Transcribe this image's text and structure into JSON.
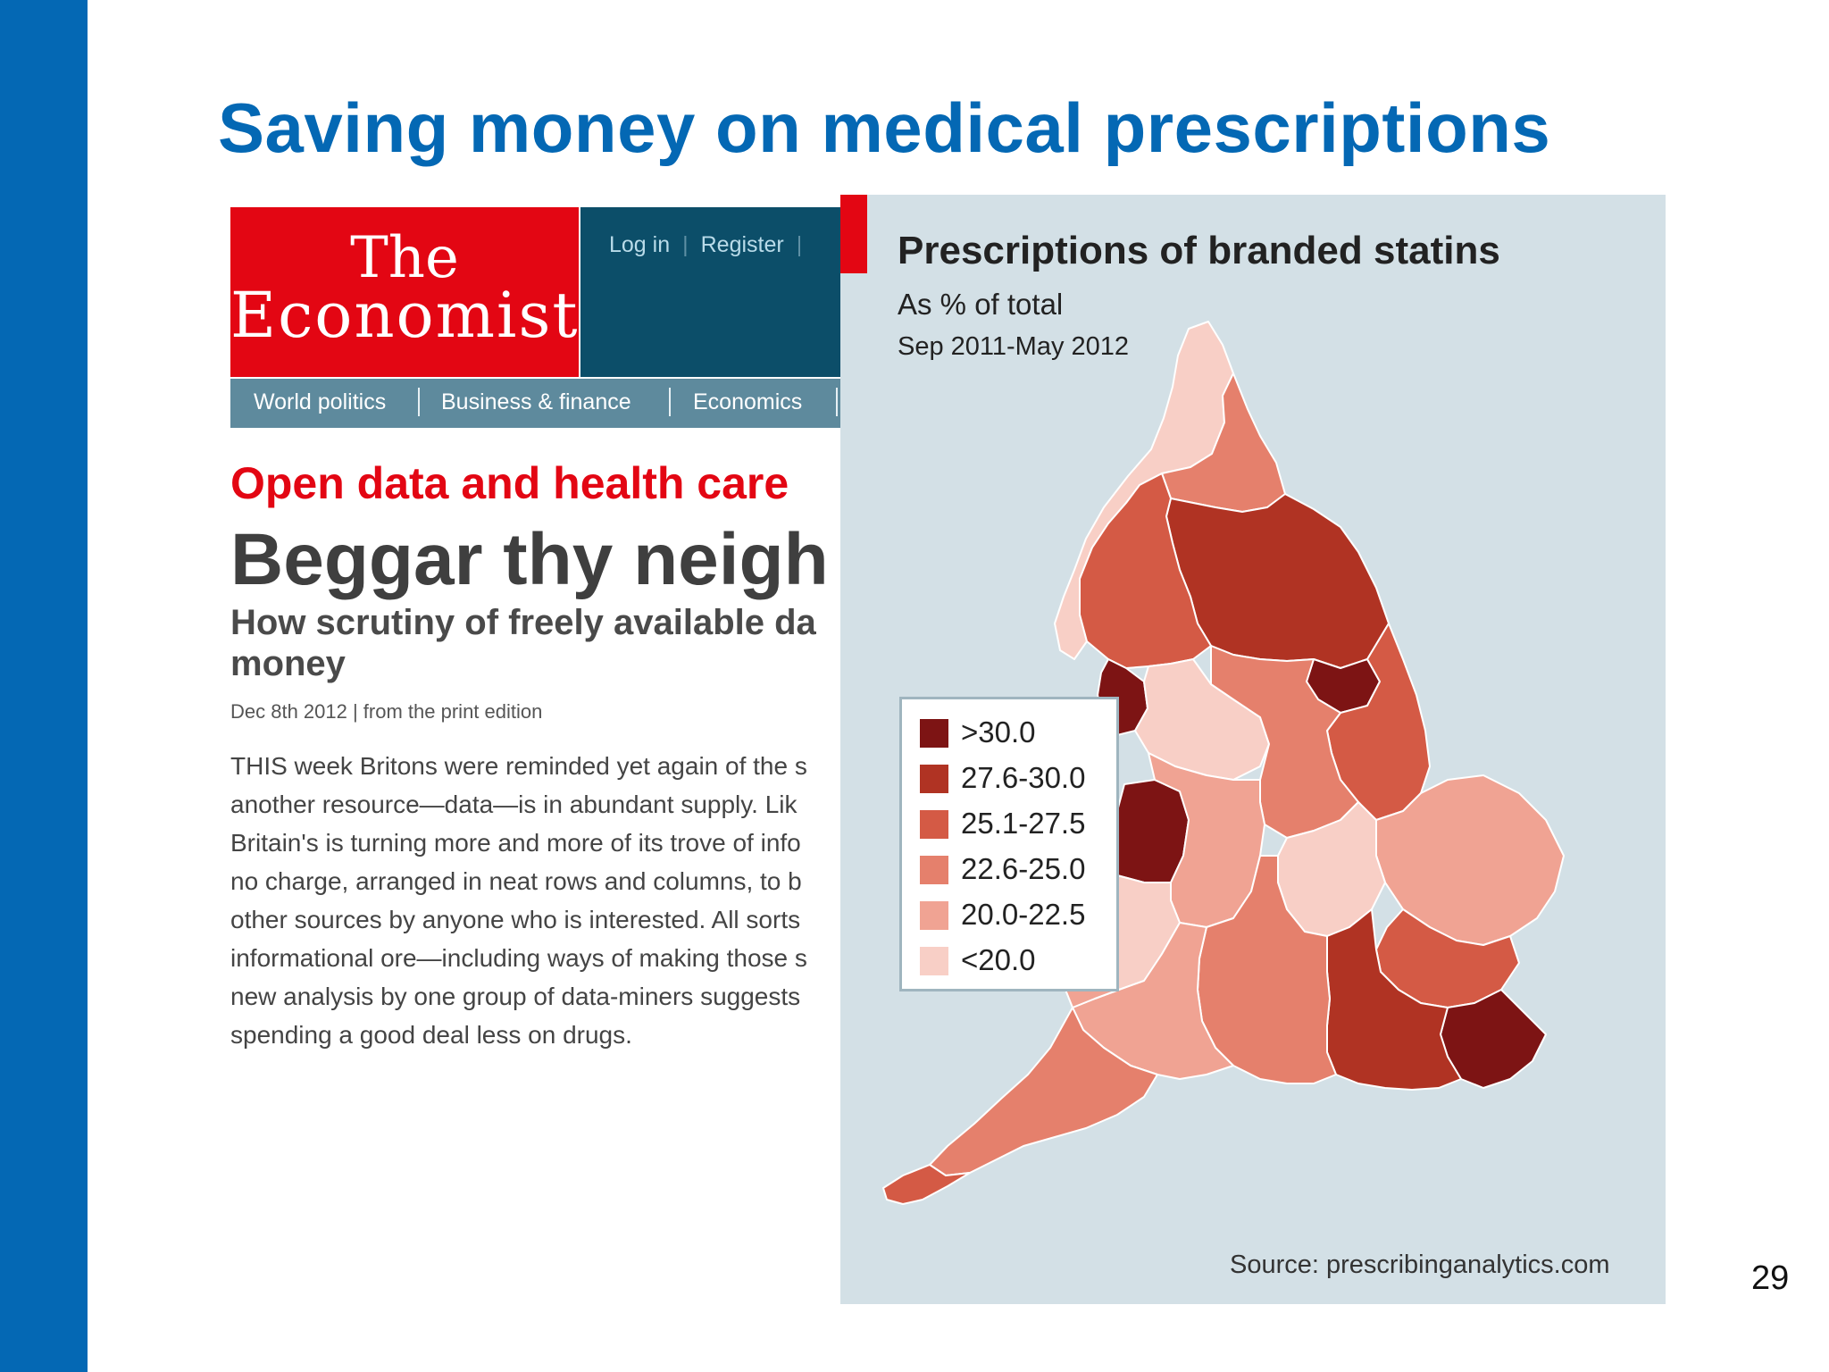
{
  "slide": {
    "title": "Saving money on medical prescriptions",
    "page_number": "29"
  },
  "article": {
    "masthead": [
      "The",
      "Economist"
    ],
    "top_links": [
      "Log in",
      "Register"
    ],
    "nav": [
      "World politics",
      "Business & finance",
      "Economics"
    ],
    "kicker": "Open data and health care",
    "headline": "Beggar thy neigh",
    "dek_lines": [
      "How scrutiny of freely available da",
      "money"
    ],
    "dateline": "Dec 8th 2012 | from the print edition",
    "body_lines": [
      "THIS week Britons were reminded yet again of the s",
      "another resource—data—is in abundant supply. Lik",
      "Britain's is turning more and more of its trove of info",
      "no charge, arranged in neat rows and columns, to b",
      "other sources by anyone who is interested. All sorts",
      "informational ore—including ways of making those s",
      "new analysis by one group of data-miners suggests",
      "spending a good deal less on drugs."
    ],
    "colors": {
      "brand_red": "#e30613",
      "top_bar": "#0c4e69",
      "nav_bar": "#5e8a9d"
    }
  },
  "map": {
    "title": "Prescriptions of branded statins",
    "subtitle": "As % of total",
    "period": "Sep 2011-May 2012",
    "source": "Source: prescribinganalytics.com",
    "background": "#d3e0e6",
    "legend": [
      {
        "label": ">30.0",
        "color": "#7d1414"
      },
      {
        "label": "27.6-30.0",
        "color": "#b03323"
      },
      {
        "label": "25.1-27.5",
        "color": "#d45a45"
      },
      {
        "label": "22.6-25.0",
        "color": "#e5806c"
      },
      {
        "label": "20.0-22.5",
        "color": "#f0a393"
      },
      {
        "label": "<20.0",
        "color": "#f8cfc6"
      }
    ],
    "regions": [
      {
        "name": "north-west-cumbria",
        "class": "<20.0"
      },
      {
        "name": "north-east-durham",
        "class": "22.6-25.0"
      },
      {
        "name": "yorkshire",
        "class": "27.6-30.0"
      },
      {
        "name": "humber",
        "class": ">30.0"
      },
      {
        "name": "lancashire",
        "class": "25.1-27.5"
      },
      {
        "name": "merseyside",
        "class": ">30.0"
      },
      {
        "name": "north-wales-border",
        "class": ">30.0"
      },
      {
        "name": "lincolnshire",
        "class": "25.1-27.5"
      },
      {
        "name": "peak-district",
        "class": "<20.0"
      },
      {
        "name": "east-midlands",
        "class": "22.6-25.0"
      },
      {
        "name": "west-midlands",
        "class": "20.0-22.5"
      },
      {
        "name": "shropshire",
        "class": "<20.0"
      },
      {
        "name": "east-anglia",
        "class": "20.0-22.5"
      },
      {
        "name": "oxfordshire",
        "class": "<20.0"
      },
      {
        "name": "london-essex",
        "class": "25.1-27.5"
      },
      {
        "name": "kent",
        "class": ">30.0"
      },
      {
        "name": "sussex-surrey",
        "class": "27.6-30.0"
      },
      {
        "name": "wiltshire-hampshire",
        "class": "22.6-25.0"
      },
      {
        "name": "somerset",
        "class": "20.0-22.5"
      },
      {
        "name": "devon",
        "class": "22.6-25.0"
      },
      {
        "name": "cornwall",
        "class": "25.1-27.5"
      },
      {
        "name": "gloucestershire",
        "class": "20.0-22.5"
      }
    ]
  }
}
